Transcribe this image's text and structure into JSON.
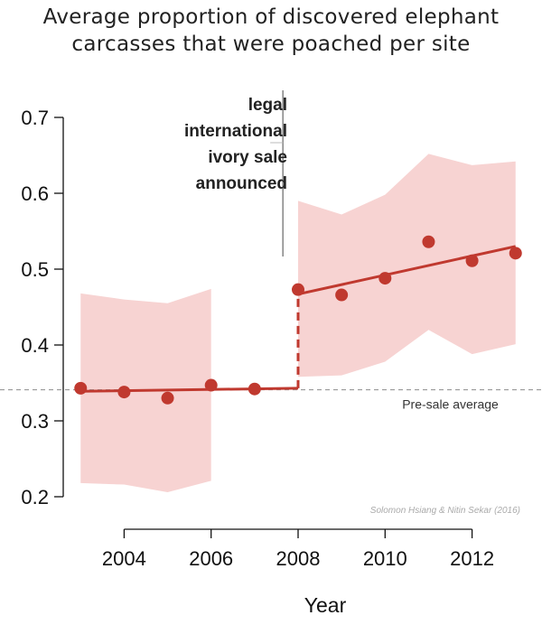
{
  "chart_data": {
    "type": "scatter",
    "title_lines": [
      "Average proportion of discovered elephant",
      "carcasses that were poached per site"
    ],
    "xlabel": "Year",
    "ylabel": "",
    "xlim": [
      2002.6,
      2013.4
    ],
    "ylim": [
      0.2,
      0.7
    ],
    "x_ticks": [
      2004,
      2006,
      2008,
      2010,
      2012
    ],
    "y_ticks": [
      0.2,
      0.3,
      0.4,
      0.5,
      0.6,
      0.7
    ],
    "y_tick_labels": [
      "0.2",
      "0.3",
      "0.4",
      "0.5",
      "0.6",
      "0.7"
    ],
    "series": [
      {
        "x": [
          2003,
          2004,
          2005,
          2006,
          2007,
          2008,
          2009,
          2010,
          2011,
          2012,
          2013
        ],
        "values": [
          0.343,
          0.338,
          0.33,
          0.347,
          0.342,
          0.473,
          0.466,
          0.488,
          0.536,
          0.511,
          0.521
        ]
      }
    ],
    "confidence_band": {
      "pre": {
        "x": [
          2003,
          2004,
          2005,
          2006
        ],
        "upper": [
          0.468,
          0.46,
          0.455,
          0.474
        ],
        "lower": [
          0.218,
          0.216,
          0.206,
          0.221
        ]
      },
      "post": {
        "x": [
          2008,
          2009,
          2010,
          2011,
          2012,
          2013
        ],
        "upper": [
          0.59,
          0.572,
          0.598,
          0.652,
          0.637,
          0.642
        ],
        "lower": [
          0.358,
          0.36,
          0.378,
          0.42,
          0.388,
          0.401
        ]
      }
    },
    "trend_lines": {
      "pre": {
        "x": [
          2003,
          2008
        ],
        "y": [
          0.339,
          0.343
        ]
      },
      "post": {
        "x": [
          2008,
          2013
        ],
        "y": [
          0.467,
          0.53
        ]
      }
    },
    "pre_sale_average": 0.341,
    "event_x": 2007.65,
    "annotation_lines": [
      "legal",
      "international",
      "ivory sale",
      "announced"
    ],
    "reference_label": "Pre-sale average",
    "credit": "Solomon Hsiang & Nitin Sekar (2016)",
    "grid": false,
    "colors": {
      "points": "#c0392f",
      "band": "#f7d3d2",
      "reference": "#999999"
    }
  }
}
